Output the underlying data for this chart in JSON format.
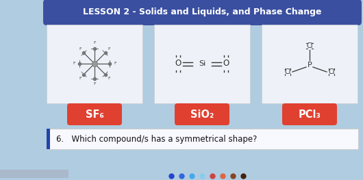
{
  "title": "LESSON 2 - Solids and Liquids, and Phase Change",
  "title_bg": "#3a4fa0",
  "title_color": "#ffffff",
  "slide_bg": "#b0cce0",
  "compound_box_bg": "#eef2f8",
  "label_bg": "#e04030",
  "label_color": "#ffffff",
  "labels": [
    "SF₆",
    "SiO₂",
    "PCl₃"
  ],
  "question": "6.   Which compound/s has a symmetrical shape?",
  "question_box_bg": "#f8f8ff",
  "question_text_color": "#111111",
  "bottom_bar_color": "#1a2a80",
  "accent_bar_color": "#2244aa"
}
